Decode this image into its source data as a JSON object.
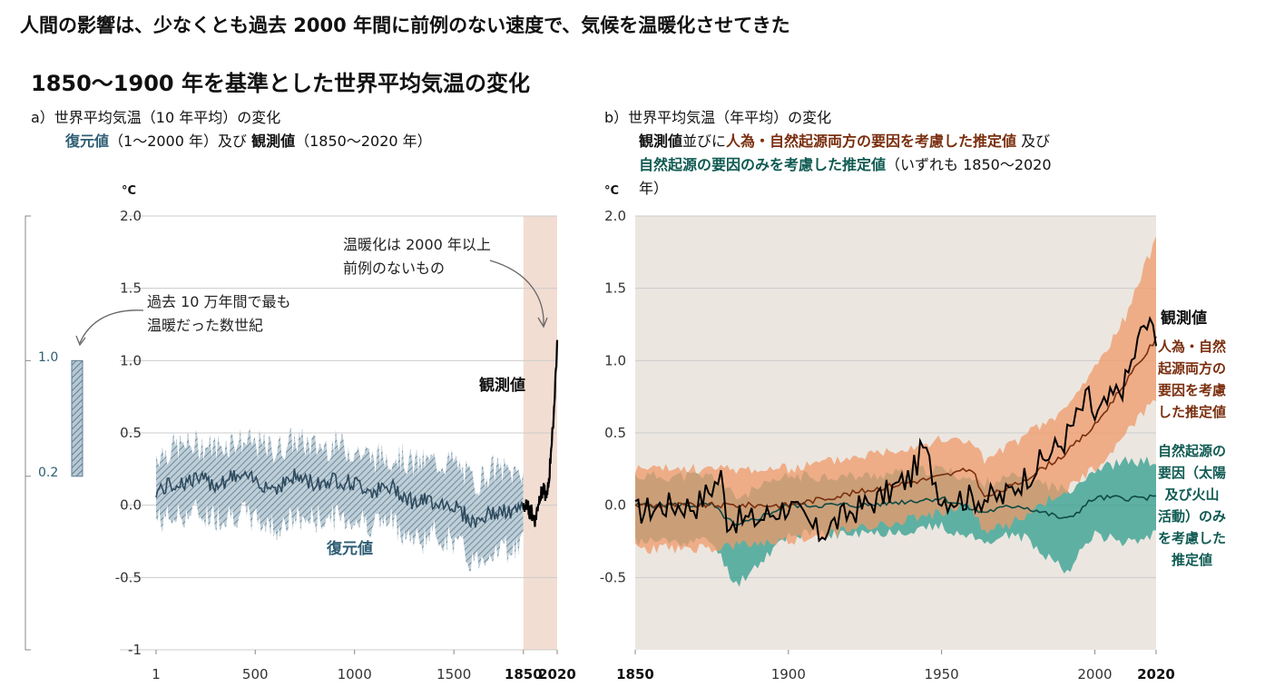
{
  "headline": "人間の影響は、少なくとも過去 2000 年間に前例のない速度で、気候を温暖化させてきた",
  "subheadline": "1850〜1900 年を基準とした世界平均気温の変化",
  "panel_a": {
    "title_line1": "a）世界平均気温（10 年平均）の変化",
    "title_recon": "復元値",
    "title_mid": "（1〜2000 年）及び",
    "title_obs": "観測値",
    "title_end": "（1850〜2020 年）",
    "unit": "°C",
    "annotation_warming_1": "温暖化は 2000 年以上",
    "annotation_warming_2": "前例のないもの",
    "annotation_warmest_1": "過去 10 万年間で最も",
    "annotation_warmest_2": "温暖だった数世紀",
    "label_observed": "観測値",
    "label_reconstructed": "復元値",
    "side_bar_upper": "1.0",
    "side_bar_lower": "0.2"
  },
  "panel_b": {
    "title_line1": "b）世界平均気温（年平均）の変化",
    "title_obs": "観測値",
    "title_mid": "並びに",
    "title_human": "人為・自然起源両方の要因を考慮した推定値",
    "title_and": " 及び",
    "title_natural": "自然起源の要因のみを考慮した推定値",
    "title_end": "（いずれも 1850〜2020",
    "title_end2": "年）",
    "unit": "°C",
    "label_observed": "観測値",
    "label_human_natural": [
      "人為・自然",
      "起源両方の",
      "要因を考慮",
      "した推定値"
    ],
    "label_natural": [
      "自然起源の",
      "要因（太陽",
      "及び火山",
      "活動）のみ",
      "を考慮した",
      "推定値"
    ]
  },
  "colors": {
    "recon_band": "#8fa7b6",
    "recon_line": "#2e4a5e",
    "obs_line": "#000000",
    "highlight": "#f2ddd2",
    "panel_b_bg": "#ece6e0",
    "human_band": "#ef9a6a",
    "human_line": "#7a2e0e",
    "natural_band": "#2f9e8f",
    "natural_line": "#0f4a44",
    "gridline": "#cccccc"
  },
  "chart_data": [
    {
      "type": "line",
      "title": "a）世界平均気温（10 年平均）の変化",
      "ylabel": "°C",
      "xlim": [
        1,
        2020
      ],
      "ylim": [
        -1,
        2
      ],
      "x_ticks": [
        "1",
        "500",
        "1000",
        "1500",
        "1850",
        "2020"
      ],
      "y_ticks": [
        "-1",
        "-0.5",
        "0.0",
        "0.5",
        "1.0",
        "1.5",
        "2.0"
      ],
      "highlight_period": [
        1850,
        2020
      ],
      "series": [
        {
          "name": "復元値",
          "x": [
            1,
            100,
            200,
            300,
            400,
            500,
            600,
            700,
            800,
            900,
            1000,
            1100,
            1200,
            1300,
            1400,
            1500,
            1600,
            1700,
            1800,
            1850
          ],
          "y": [
            0.1,
            0.15,
            0.18,
            0.15,
            0.2,
            0.17,
            0.12,
            0.2,
            0.15,
            0.18,
            0.15,
            0.1,
            0.12,
            0.02,
            0.03,
            0.0,
            -0.12,
            -0.05,
            -0.05,
            -0.02
          ],
          "band_lower": [
            -0.1,
            -0.08,
            -0.05,
            -0.08,
            -0.05,
            -0.1,
            -0.15,
            -0.1,
            -0.1,
            -0.08,
            -0.1,
            -0.12,
            -0.12,
            -0.25,
            -0.2,
            -0.25,
            -0.4,
            -0.3,
            -0.3,
            -0.25
          ],
          "band_upper": [
            0.35,
            0.4,
            0.42,
            0.4,
            0.45,
            0.42,
            0.38,
            0.45,
            0.4,
            0.42,
            0.38,
            0.32,
            0.35,
            0.28,
            0.3,
            0.3,
            0.15,
            0.25,
            0.22,
            0.25
          ]
        },
        {
          "name": "観測値",
          "x": [
            1850,
            1870,
            1890,
            1910,
            1930,
            1950,
            1970,
            1980,
            1990,
            2000,
            2010,
            2020
          ],
          "y": [
            0.0,
            -0.02,
            -0.05,
            -0.1,
            0.05,
            0.1,
            0.05,
            0.2,
            0.4,
            0.55,
            0.85,
            1.09
          ]
        }
      ],
      "reference_bar": {
        "label_upper": "1.0",
        "label_lower": "0.2",
        "range": [
          0.2,
          1.0
        ]
      }
    },
    {
      "type": "line",
      "title": "b）世界平均気温（年平均）の変化",
      "ylabel": "°C",
      "xlim": [
        1850,
        2020
      ],
      "ylim": [
        -1,
        2
      ],
      "x_ticks": [
        "1850",
        "1900",
        "1950",
        "2000",
        "2020"
      ],
      "y_ticks": [
        "-0.5",
        "0.0",
        "0.5",
        "1.0",
        "1.5",
        "2.0"
      ],
      "series": [
        {
          "name": "観測値",
          "x": [
            1850,
            1860,
            1870,
            1878,
            1880,
            1890,
            1900,
            1910,
            1920,
            1930,
            1940,
            1944,
            1950,
            1960,
            1970,
            1980,
            1990,
            1998,
            2000,
            2010,
            2016,
            2020
          ],
          "y": [
            -0.05,
            0.0,
            0.0,
            0.2,
            -0.1,
            -0.1,
            0.0,
            -0.2,
            -0.05,
            0.05,
            0.2,
            0.4,
            0.05,
            0.05,
            0.05,
            0.25,
            0.45,
            0.75,
            0.6,
            0.85,
            1.25,
            1.2
          ]
        },
        {
          "name": "人為・自然起源両方の要因を考慮した推定値",
          "x": [
            1850,
            1875,
            1900,
            1925,
            1950,
            1960,
            1964,
            1975,
            1990,
            2000,
            2010,
            2020
          ],
          "y": [
            0.0,
            0.0,
            0.0,
            0.1,
            0.2,
            0.25,
            0.05,
            0.15,
            0.35,
            0.55,
            0.85,
            1.15
          ],
          "band_lower": [
            -0.3,
            -0.3,
            -0.25,
            -0.15,
            -0.05,
            0.0,
            -0.2,
            -0.1,
            0.1,
            0.25,
            0.5,
            0.75
          ],
          "band_upper": [
            0.25,
            0.25,
            0.25,
            0.35,
            0.45,
            0.45,
            0.3,
            0.45,
            0.65,
            0.95,
            1.3,
            1.85
          ]
        },
        {
          "name": "自然起源の要因のみを考慮した推定値",
          "x": [
            1850,
            1875,
            1883,
            1900,
            1925,
            1950,
            1963,
            1975,
            1991,
            2000,
            2010,
            2020
          ],
          "y": [
            0.0,
            0.0,
            -0.15,
            0.0,
            0.0,
            0.05,
            -0.05,
            0.0,
            -0.1,
            0.05,
            0.05,
            0.05
          ],
          "band_lower": [
            -0.25,
            -0.25,
            -0.55,
            -0.2,
            -0.2,
            -0.15,
            -0.25,
            -0.2,
            -0.45,
            -0.2,
            -0.25,
            -0.2
          ],
          "band_upper": [
            0.2,
            0.2,
            0.05,
            0.2,
            0.2,
            0.25,
            0.15,
            0.2,
            0.1,
            0.25,
            0.3,
            0.3
          ]
        }
      ]
    }
  ]
}
